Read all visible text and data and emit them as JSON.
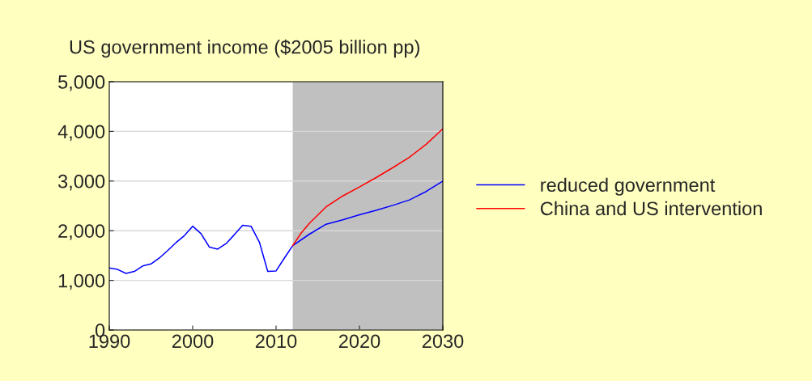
{
  "chart_data": {
    "type": "line",
    "title": "US government income ($2005 billion pp)",
    "series": [
      {
        "name": "reduced government",
        "color": "#0000ff",
        "x": [
          1990,
          1991,
          1992,
          1993,
          1994,
          1995,
          1996,
          1997,
          1998,
          1999,
          2000,
          2001,
          2002,
          2003,
          2004,
          2005,
          2006,
          2007,
          2008,
          2009,
          2010,
          2011,
          2012,
          2014,
          2016,
          2018,
          2020,
          2022,
          2024,
          2026,
          2028,
          2030
        ],
        "values": [
          1250,
          1220,
          1140,
          1180,
          1290,
          1330,
          1450,
          1600,
          1760,
          1900,
          2090,
          1940,
          1670,
          1630,
          1740,
          1920,
          2110,
          2090,
          1770,
          1180,
          1190,
          1450,
          1700,
          1930,
          2130,
          2220,
          2320,
          2410,
          2510,
          2620,
          2790,
          3000
        ]
      },
      {
        "name": "China and US intervention",
        "color": "#ff0000",
        "x": [
          2012,
          2013,
          2014,
          2016,
          2018,
          2020,
          2022,
          2024,
          2026,
          2028,
          2030
        ],
        "values": [
          1700,
          1950,
          2150,
          2480,
          2700,
          2880,
          3070,
          3270,
          3480,
          3740,
          4050
        ]
      }
    ],
    "xlim": [
      1990,
      2030
    ],
    "xticks": [
      1990,
      2000,
      2010,
      2020,
      2030
    ],
    "ylim": [
      0,
      5000
    ],
    "yticks": [
      {
        "value": 0,
        "label": "0"
      },
      {
        "value": 1000,
        "label": "1,000"
      },
      {
        "value": 2000,
        "label": "2,000"
      },
      {
        "value": 3000,
        "label": "3,000"
      },
      {
        "value": 4000,
        "label": "4,000"
      },
      {
        "value": 5000,
        "label": "5,000"
      }
    ],
    "bands": [
      {
        "axis": "x",
        "from": 2012,
        "to": 2030,
        "color": "#c0c0c0"
      }
    ],
    "grid": "y",
    "legend": "right",
    "line_style": "solid"
  }
}
